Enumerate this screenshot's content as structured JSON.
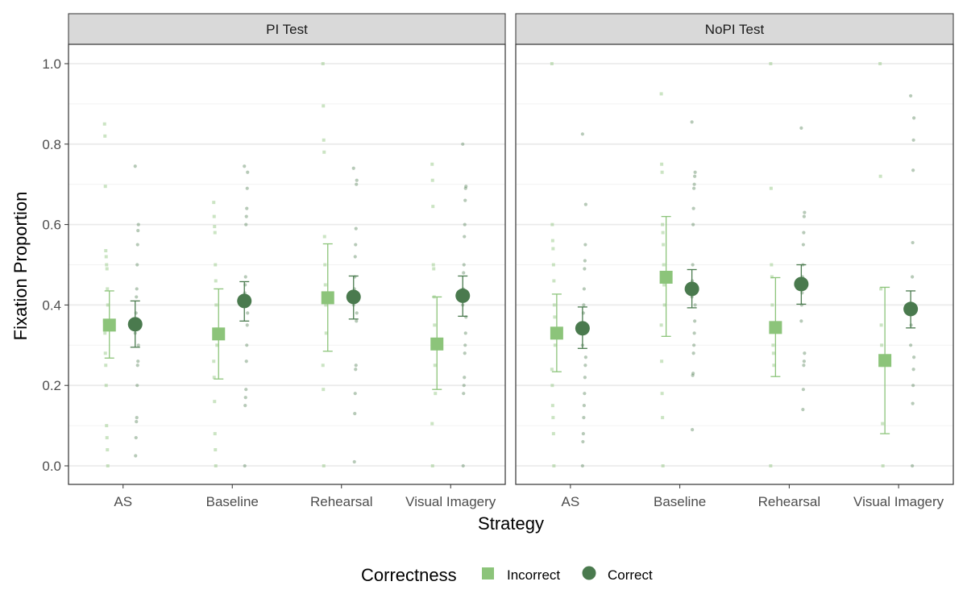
{
  "chart_data": {
    "type": "scatter",
    "title": "",
    "xlabel": "Strategy",
    "ylabel": "Fixation Proportion",
    "ylim": [
      -0.05,
      1.05
    ],
    "y_ticks": [
      "0.0",
      "0.2",
      "0.4",
      "0.6",
      "0.8",
      "1.0"
    ],
    "categories": [
      "AS",
      "Baseline",
      "Rehearsal",
      "Visual Imagery"
    ],
    "grid": true,
    "legend": {
      "title": "Correctness",
      "position": "bottom",
      "entries": [
        {
          "label": "Incorrect",
          "shape": "square",
          "color": "#8cc47a"
        },
        {
          "label": "Correct",
          "shape": "circle",
          "color": "#4a7a4e"
        }
      ]
    },
    "colors": {
      "incorrect": "#8cc47a",
      "correct": "#4a7a4e",
      "strip": "#d9d9d9"
    },
    "panels": [
      {
        "name": "PI Test",
        "series": [
          {
            "name": "Incorrect",
            "means": [
              0.35,
              0.328,
              0.418,
              0.303
            ],
            "ci_low": [
              0.268,
              0.216,
              0.285,
              0.19
            ],
            "ci_high": [
              0.435,
              0.44,
              0.552,
              0.42
            ],
            "raw": [
              [
                0.85,
                0.82,
                0.695,
                0.535,
                0.52,
                0.5,
                0.49,
                0.44,
                0.4,
                0.36,
                0.33,
                0.28,
                0.25,
                0.2,
                0.1,
                0.07,
                0.04,
                0.0
              ],
              [
                0.655,
                0.62,
                0.595,
                0.58,
                0.5,
                0.46,
                0.4,
                0.34,
                0.3,
                0.26,
                0.22,
                0.16,
                0.08,
                0.04,
                0.0
              ],
              [
                1.0,
                0.895,
                0.81,
                0.78,
                0.57,
                0.5,
                0.45,
                0.4,
                0.33,
                0.25,
                0.19,
                0.0
              ],
              [
                0.75,
                0.71,
                0.645,
                0.5,
                0.49,
                0.42,
                0.35,
                0.25,
                0.18,
                0.105,
                0.0
              ]
            ]
          },
          {
            "name": "Correct",
            "means": [
              0.352,
              0.41,
              0.42,
              0.423
            ],
            "ci_low": [
              0.295,
              0.36,
              0.365,
              0.372
            ],
            "ci_high": [
              0.41,
              0.458,
              0.472,
              0.472
            ],
            "raw": [
              [
                0.745,
                0.6,
                0.585,
                0.55,
                0.5,
                0.44,
                0.42,
                0.38,
                0.36,
                0.33,
                0.3,
                0.26,
                0.25,
                0.2,
                0.12,
                0.11,
                0.07,
                0.025
              ],
              [
                0.745,
                0.73,
                0.69,
                0.64,
                0.62,
                0.6,
                0.47,
                0.45,
                0.43,
                0.4,
                0.38,
                0.35,
                0.3,
                0.26,
                0.19,
                0.17,
                0.15,
                0.0
              ],
              [
                0.74,
                0.71,
                0.7,
                0.59,
                0.55,
                0.52,
                0.47,
                0.44,
                0.42,
                0.4,
                0.38,
                0.36,
                0.25,
                0.24,
                0.18,
                0.13,
                0.01
              ],
              [
                0.8,
                0.695,
                0.69,
                0.66,
                0.6,
                0.57,
                0.5,
                0.48,
                0.44,
                0.4,
                0.37,
                0.33,
                0.3,
                0.28,
                0.22,
                0.2,
                0.18,
                0.0
              ]
            ]
          }
        ]
      },
      {
        "name": "NoPI Test",
        "series": [
          {
            "name": "Incorrect",
            "means": [
              0.33,
              0.469,
              0.344,
              0.262
            ],
            "ci_low": [
              0.234,
              0.322,
              0.222,
              0.08
            ],
            "ci_high": [
              0.427,
              0.62,
              0.468,
              0.444
            ],
            "raw": [
              [
                1.0,
                0.6,
                0.56,
                0.54,
                0.5,
                0.46,
                0.4,
                0.37,
                0.3,
                0.24,
                0.2,
                0.15,
                0.12,
                0.08,
                0.0
              ],
              [
                0.925,
                0.75,
                0.73,
                0.6,
                0.58,
                0.55,
                0.5,
                0.45,
                0.4,
                0.35,
                0.26,
                0.18,
                0.12,
                0.0
              ],
              [
                1.0,
                0.69,
                0.5,
                0.47,
                0.4,
                0.35,
                0.3,
                0.28,
                0.25,
                0.0
              ],
              [
                1.0,
                0.72,
                0.44,
                0.35,
                0.3,
                0.25,
                0.105,
                0.0
              ]
            ]
          },
          {
            "name": "Correct",
            "means": [
              0.342,
              0.44,
              0.452,
              0.39
            ],
            "ci_low": [
              0.292,
              0.393,
              0.402,
              0.343
            ],
            "ci_high": [
              0.395,
              0.488,
              0.5,
              0.435
            ],
            "raw": [
              [
                0.825,
                0.65,
                0.55,
                0.51,
                0.49,
                0.44,
                0.4,
                0.38,
                0.34,
                0.3,
                0.27,
                0.25,
                0.22,
                0.18,
                0.15,
                0.12,
                0.08,
                0.06,
                0.0
              ],
              [
                0.855,
                0.73,
                0.72,
                0.7,
                0.69,
                0.64,
                0.6,
                0.5,
                0.46,
                0.42,
                0.4,
                0.36,
                0.33,
                0.3,
                0.28,
                0.23,
                0.225,
                0.09
              ],
              [
                0.84,
                0.63,
                0.62,
                0.58,
                0.55,
                0.5,
                0.47,
                0.43,
                0.4,
                0.36,
                0.28,
                0.26,
                0.25,
                0.19,
                0.14
              ],
              [
                0.92,
                0.865,
                0.81,
                0.735,
                0.555,
                0.47,
                0.4,
                0.38,
                0.35,
                0.3,
                0.27,
                0.24,
                0.2,
                0.155,
                0.0
              ]
            ]
          }
        ]
      }
    ]
  }
}
